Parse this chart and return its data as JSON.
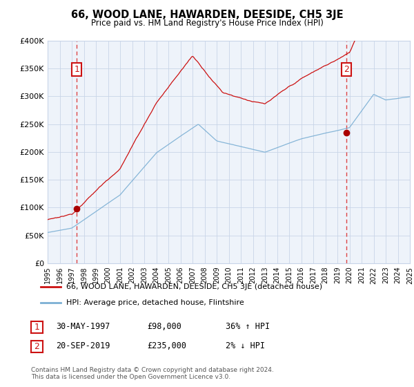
{
  "title": "66, WOOD LANE, HAWARDEN, DEESIDE, CH5 3JE",
  "subtitle": "Price paid vs. HM Land Registry's House Price Index (HPI)",
  "ylim": [
    0,
    400000
  ],
  "yticks": [
    0,
    50000,
    100000,
    150000,
    200000,
    250000,
    300000,
    350000,
    400000
  ],
  "sale1_price": 98000,
  "sale1_x": 1997.41,
  "sale2_price": 235000,
  "sale2_x": 2019.72,
  "hpi_line_color": "#7bafd4",
  "price_line_color": "#cc1111",
  "dashed_line_color": "#dd4444",
  "marker_color": "#aa0000",
  "background_color": "#ffffff",
  "plot_bg_color": "#eef3fa",
  "grid_color": "#c8d4e8",
  "legend_label1": "66, WOOD LANE, HAWARDEN, DEESIDE, CH5 3JE (detached house)",
  "legend_label2": "HPI: Average price, detached house, Flintshire",
  "table_row1": [
    "1",
    "30-MAY-1997",
    "£98,000",
    "36% ↑ HPI"
  ],
  "table_row2": [
    "2",
    "20-SEP-2019",
    "£235,000",
    "2% ↓ HPI"
  ],
  "footnote1": "Contains HM Land Registry data © Crown copyright and database right 2024.",
  "footnote2": "This data is licensed under the Open Government Licence v3.0.",
  "xmin": 1995,
  "xmax": 2025
}
